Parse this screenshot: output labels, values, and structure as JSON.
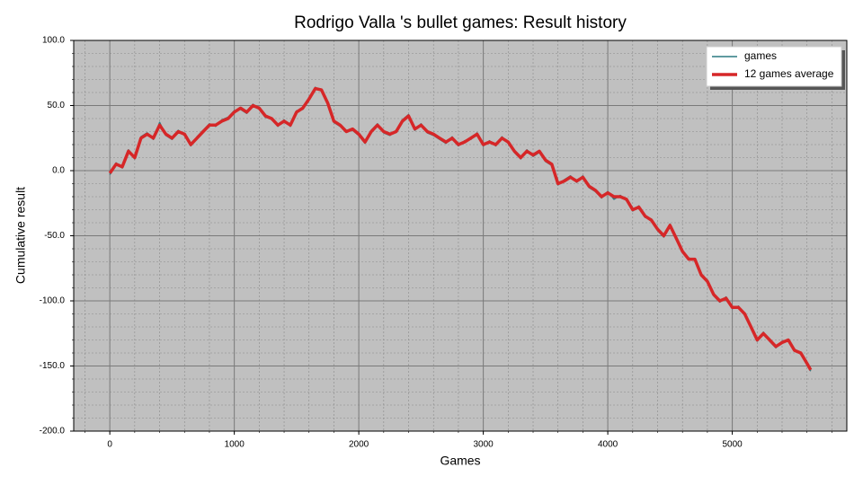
{
  "chart_data": {
    "type": "line",
    "title": "Rodrigo Valla 's bullet games: Result history",
    "x_label": "Games",
    "y_label": "Cumulative result",
    "x": [
      0,
      50,
      100,
      150,
      200,
      250,
      300,
      350,
      400,
      450,
      500,
      550,
      600,
      650,
      700,
      750,
      800,
      850,
      900,
      950,
      1000,
      1050,
      1100,
      1150,
      1200,
      1250,
      1300,
      1350,
      1400,
      1450,
      1500,
      1550,
      1600,
      1650,
      1700,
      1750,
      1800,
      1850,
      1900,
      1950,
      2000,
      2050,
      2100,
      2150,
      2200,
      2250,
      2300,
      2350,
      2400,
      2450,
      2500,
      2550,
      2600,
      2650,
      2700,
      2750,
      2800,
      2850,
      2900,
      2950,
      3000,
      3050,
      3100,
      3150,
      3200,
      3250,
      3300,
      3350,
      3400,
      3450,
      3500,
      3550,
      3600,
      3650,
      3700,
      3750,
      3800,
      3850,
      3900,
      3950,
      4000,
      4050,
      4100,
      4150,
      4200,
      4250,
      4300,
      4350,
      4400,
      4450,
      4500,
      4550,
      4600,
      4650,
      4700,
      4750,
      4800,
      4850,
      4900,
      4950,
      5000,
      5050,
      5100,
      5150,
      5200,
      5250,
      5300,
      5350,
      5400,
      5450,
      5500,
      5550,
      5600,
      5630
    ],
    "series": [
      {
        "name": "games",
        "color": "#2a7a80",
        "width": 1.5,
        "values": [
          -3,
          6,
          2,
          16,
          9,
          26,
          29,
          24,
          37,
          27,
          24,
          31,
          27,
          19,
          26,
          31,
          36,
          34,
          39,
          41,
          46,
          47,
          44,
          51,
          47,
          41,
          40,
          34,
          39,
          34,
          46,
          47,
          56,
          64,
          61,
          51,
          37,
          34,
          31,
          31,
          27,
          21,
          31,
          36,
          29,
          27,
          31,
          39,
          43,
          31,
          36,
          29,
          27,
          24,
          21,
          26,
          19,
          23,
          24,
          29,
          19,
          23,
          19,
          26,
          21,
          14,
          9,
          16,
          11,
          14,
          7,
          4,
          -11,
          -7,
          -4,
          -9,
          -4,
          -13,
          -16,
          -21,
          -16,
          -22,
          -19,
          -23,
          -31,
          -27,
          -36,
          -37,
          -46,
          -51,
          -41,
          -53,
          -63,
          -67,
          -69,
          -81,
          -84,
          -96,
          -101,
          -97,
          -106,
          -104,
          -111,
          -121,
          -131,
          -124,
          -131,
          -136,
          -131,
          -131,
          -137,
          -141,
          -149,
          -154
        ]
      },
      {
        "name": "12 games average",
        "color": "#d62728",
        "width": 3.5,
        "values": [
          -2,
          5,
          3,
          15,
          10,
          25,
          28,
          25,
          35,
          28,
          25,
          30,
          28,
          20,
          25,
          30,
          35,
          35,
          38,
          40,
          45,
          48,
          45,
          50,
          48,
          42,
          40,
          35,
          38,
          35,
          45,
          48,
          55,
          63,
          62,
          52,
          38,
          35,
          30,
          32,
          28,
          22,
          30,
          35,
          30,
          28,
          30,
          38,
          42,
          32,
          35,
          30,
          28,
          25,
          22,
          25,
          20,
          22,
          25,
          28,
          20,
          22,
          20,
          25,
          22,
          15,
          10,
          15,
          12,
          15,
          8,
          5,
          -10,
          -8,
          -5,
          -8,
          -5,
          -12,
          -15,
          -20,
          -17,
          -20,
          -20,
          -22,
          -30,
          -28,
          -35,
          -38,
          -45,
          -50,
          -42,
          -52,
          -62,
          -68,
          -68,
          -80,
          -85,
          -95,
          -100,
          -98,
          -105,
          -105,
          -110,
          -120,
          -130,
          -125,
          -130,
          -135,
          -132,
          -130,
          -138,
          -140,
          -148,
          -153
        ]
      }
    ],
    "xlim": [
      -290,
      5920
    ],
    "ylim": [
      -200,
      100
    ],
    "xticks": [
      0,
      1000,
      2000,
      3000,
      4000,
      5000
    ],
    "yticks": [
      {
        "value": -200,
        "label": "-200.0"
      },
      {
        "value": -150,
        "label": "-150.0"
      },
      {
        "value": -100,
        "label": "-100.0"
      },
      {
        "value": -50,
        "label": "-50.0"
      },
      {
        "value": 0,
        "label": "0.0"
      },
      {
        "value": 50,
        "label": "50.0"
      },
      {
        "value": 100,
        "label": "100.0"
      }
    ],
    "grid": true,
    "minor_grid": true,
    "legend": "upper right"
  }
}
